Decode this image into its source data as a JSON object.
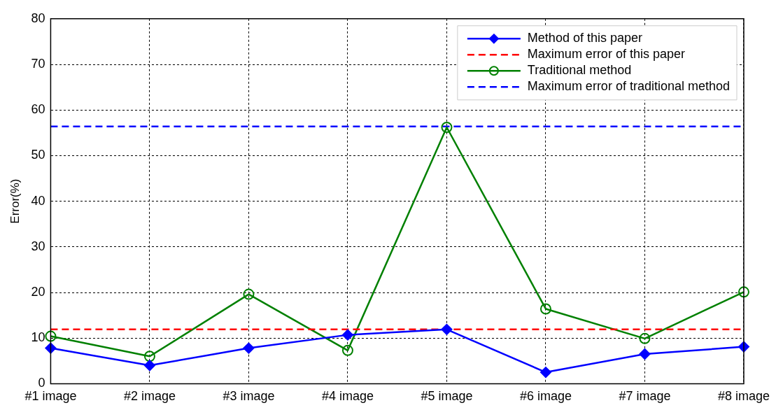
{
  "chart_data": {
    "type": "line",
    "ylabel": "Error(%)",
    "categories": [
      "#1 image",
      "#2 image",
      "#3 image",
      "#4 image",
      "#5 image",
      "#6 image",
      "#7 image",
      "#8 image"
    ],
    "series": [
      {
        "name": "Method of this paper",
        "color": "#0000ff",
        "marker": "diamond",
        "values": [
          7.8,
          4.0,
          7.8,
          10.7,
          11.9,
          2.5,
          6.5,
          8.1
        ]
      },
      {
        "name": "Traditional method",
        "color": "#008000",
        "marker": "circle",
        "values": [
          10.4,
          6.0,
          19.6,
          7.3,
          56.2,
          16.4,
          9.9,
          20.1
        ]
      }
    ],
    "ref_lines": [
      {
        "axis": "y",
        "value": 11.9,
        "label": "Maximum error of this paper",
        "color": "#ff0000",
        "line_style": "dashed"
      },
      {
        "axis": "y",
        "value": 56.4,
        "label": "Maximum error of traditional method",
        "color": "#0000ff",
        "line_style": "dashed"
      }
    ],
    "ylim": [
      0,
      80
    ],
    "yticks": [
      0,
      10,
      20,
      30,
      40,
      50,
      60,
      70,
      80
    ],
    "grid": true,
    "legend": "top right"
  }
}
